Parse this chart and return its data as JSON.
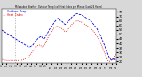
{
  "title": "Milwaukee Weather  Outdoor Temp (vs)  Heat Index per Minute (Last 24 Hours)",
  "legend_blue": "-- Outdoor Temp",
  "legend_red": ".. Heat Index",
  "bg_color": "#d8d8d8",
  "plot_bg_color": "#ffffff",
  "blue_color": "#0000dd",
  "red_color": "#dd0000",
  "vline_color": "#aaaaaa",
  "ylim": [
    18,
    78
  ],
  "ytick_vals": [
    20,
    25,
    30,
    35,
    40,
    45,
    50,
    55,
    60,
    65,
    70,
    75
  ],
  "vline_positions": [
    0.115,
    0.23
  ],
  "blue_data": [
    55,
    54,
    53,
    52,
    51,
    50,
    49,
    48,
    47,
    46,
    45,
    44,
    43,
    42,
    41,
    40,
    39,
    38,
    37,
    36,
    36,
    37,
    38,
    40,
    42,
    44,
    46,
    47,
    48,
    46,
    45,
    47,
    50,
    53,
    56,
    58,
    60,
    63,
    65,
    67,
    68,
    66,
    65,
    64,
    62,
    61,
    62,
    64,
    66,
    68,
    70,
    71,
    72,
    73,
    73,
    72,
    72,
    71,
    70,
    69,
    68,
    67,
    66,
    65,
    63,
    61,
    59,
    57,
    54,
    51,
    48,
    44,
    40,
    36,
    32,
    28,
    24,
    22,
    21,
    24,
    22,
    23
  ],
  "red_data": [
    22,
    22,
    22,
    21,
    21,
    21,
    21,
    21,
    21,
    21,
    21,
    21,
    21,
    21,
    21,
    22,
    22,
    23,
    24,
    25,
    27,
    29,
    31,
    33,
    35,
    37,
    38,
    38,
    37,
    36,
    37,
    40,
    44,
    47,
    50,
    52,
    54,
    57,
    58,
    59,
    59,
    58,
    57,
    56,
    54,
    53,
    54,
    56,
    58,
    60,
    62,
    63,
    64,
    65,
    65,
    64,
    64,
    63,
    62,
    61,
    60,
    59,
    58,
    57,
    55,
    53,
    51,
    49,
    46,
    43,
    40,
    36,
    32,
    28,
    24,
    21,
    20,
    21,
    22,
    24,
    26,
    28
  ]
}
